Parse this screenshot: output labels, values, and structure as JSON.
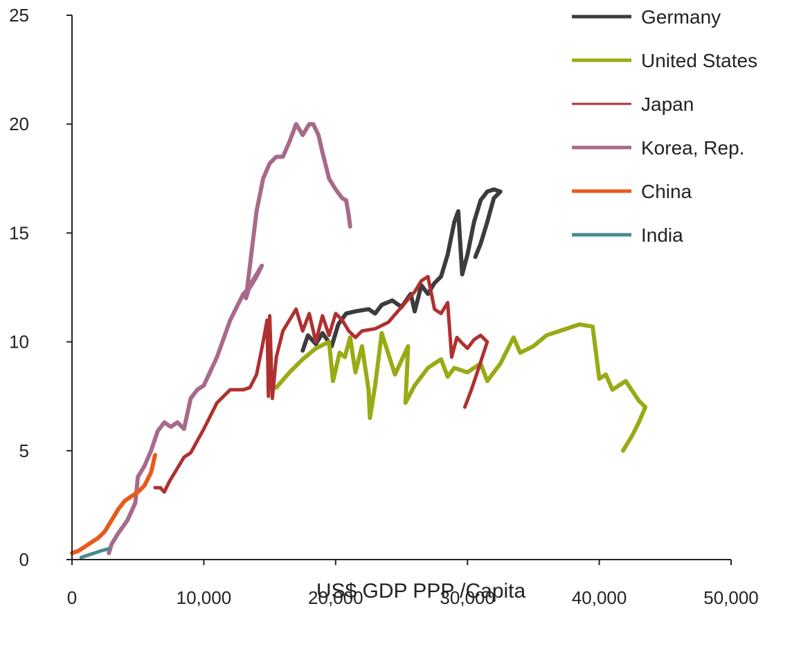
{
  "chart_data": {
    "type": "line",
    "title": "",
    "xlabel": "US$ GDP PPP /Capita",
    "ylabel": "",
    "xlim": [
      0,
      50000
    ],
    "ylim": [
      0,
      25
    ],
    "x_ticks": [
      0,
      10000,
      20000,
      30000,
      40000,
      50000
    ],
    "x_tick_labels": [
      "0",
      "10,000",
      "20,000",
      "30,000",
      "40,000",
      "50,000"
    ],
    "y_ticks": [
      0,
      5,
      10,
      15,
      20,
      25
    ],
    "y_tick_labels": [
      "0",
      "5",
      "10",
      "15",
      "20",
      "25"
    ],
    "grid": false,
    "legend_position": "top-right",
    "series": [
      {
        "name": "Germany",
        "color": "#3c3c3c",
        "points": [
          [
            17500,
            9.6
          ],
          [
            17900,
            10.3
          ],
          [
            18500,
            9.9
          ],
          [
            19000,
            10.4
          ],
          [
            19700,
            9.8
          ],
          [
            20200,
            10.8
          ],
          [
            20800,
            11.3
          ],
          [
            21500,
            11.4
          ],
          [
            22500,
            11.5
          ],
          [
            23000,
            11.3
          ],
          [
            23500,
            11.7
          ],
          [
            24300,
            11.9
          ],
          [
            25000,
            11.6
          ],
          [
            25700,
            12.2
          ],
          [
            26000,
            11.4
          ],
          [
            26500,
            12.6
          ],
          [
            27000,
            12.2
          ],
          [
            27500,
            12.7
          ],
          [
            28000,
            13.0
          ],
          [
            28500,
            14.0
          ],
          [
            29000,
            15.5
          ],
          [
            29300,
            16.0
          ],
          [
            29600,
            13.1
          ],
          [
            30000,
            14.0
          ],
          [
            30500,
            15.5
          ],
          [
            31000,
            16.5
          ],
          [
            31500,
            16.9
          ],
          [
            32000,
            17.0
          ],
          [
            32500,
            16.9
          ],
          [
            32000,
            16.6
          ],
          [
            31500,
            15.5
          ],
          [
            31000,
            14.5
          ],
          [
            30600,
            13.9
          ]
        ]
      },
      {
        "name": "United States",
        "color": "#9aaa14",
        "points": [
          [
            15500,
            7.9
          ],
          [
            16500,
            8.6
          ],
          [
            17500,
            9.2
          ],
          [
            18500,
            9.7
          ],
          [
            19500,
            10.0
          ],
          [
            19800,
            8.2
          ],
          [
            20300,
            9.5
          ],
          [
            20700,
            9.3
          ],
          [
            21100,
            10.2
          ],
          [
            21500,
            8.6
          ],
          [
            22000,
            9.8
          ],
          [
            22500,
            7.8
          ],
          [
            22600,
            6.5
          ],
          [
            23000,
            8.0
          ],
          [
            23500,
            10.4
          ],
          [
            24500,
            8.5
          ],
          [
            25500,
            9.8
          ],
          [
            25300,
            7.2
          ],
          [
            26000,
            8.0
          ],
          [
            27000,
            8.8
          ],
          [
            28000,
            9.2
          ],
          [
            28500,
            8.4
          ],
          [
            29000,
            8.8
          ],
          [
            30000,
            8.6
          ],
          [
            31000,
            9.0
          ],
          [
            31500,
            8.2
          ],
          [
            32500,
            9.0
          ],
          [
            33500,
            10.2
          ],
          [
            34000,
            9.5
          ],
          [
            35000,
            9.8
          ],
          [
            36000,
            10.3
          ],
          [
            37000,
            10.5
          ],
          [
            38500,
            10.8
          ],
          [
            39500,
            10.7
          ],
          [
            40000,
            8.3
          ],
          [
            40500,
            8.5
          ],
          [
            41000,
            7.8
          ],
          [
            42000,
            8.2
          ],
          [
            43000,
            7.3
          ],
          [
            43500,
            7.0
          ],
          [
            43000,
            6.3
          ],
          [
            42500,
            5.7
          ],
          [
            41800,
            5.0
          ]
        ]
      },
      {
        "name": "Japan",
        "color": "#b03030",
        "points": [
          [
            6300,
            3.3
          ],
          [
            6700,
            3.3
          ],
          [
            7000,
            3.1
          ],
          [
            7400,
            3.6
          ],
          [
            8000,
            4.2
          ],
          [
            8500,
            4.7
          ],
          [
            9000,
            4.9
          ],
          [
            10000,
            6.0
          ],
          [
            11000,
            7.2
          ],
          [
            12000,
            7.8
          ],
          [
            13000,
            7.8
          ],
          [
            13500,
            7.9
          ],
          [
            14000,
            8.5
          ],
          [
            14500,
            10.0
          ],
          [
            14800,
            11.0
          ],
          [
            14900,
            7.5
          ],
          [
            15000,
            11.2
          ],
          [
            15200,
            7.4
          ],
          [
            15500,
            9.3
          ],
          [
            16000,
            10.5
          ],
          [
            17000,
            11.5
          ],
          [
            17500,
            10.5
          ],
          [
            18000,
            11.3
          ],
          [
            18500,
            10.0
          ],
          [
            19000,
            11.2
          ],
          [
            19500,
            10.3
          ],
          [
            20000,
            11.3
          ],
          [
            20500,
            11.0
          ],
          [
            21000,
            10.5
          ],
          [
            21500,
            10.2
          ],
          [
            22000,
            10.5
          ],
          [
            23000,
            10.6
          ],
          [
            24000,
            10.9
          ],
          [
            25000,
            11.6
          ],
          [
            26000,
            12.3
          ],
          [
            26500,
            12.8
          ],
          [
            27000,
            13.0
          ],
          [
            27500,
            11.5
          ],
          [
            28000,
            11.3
          ],
          [
            28500,
            11.8
          ],
          [
            28800,
            9.3
          ],
          [
            29200,
            10.2
          ],
          [
            29500,
            10.0
          ],
          [
            30000,
            9.7
          ],
          [
            30500,
            10.1
          ],
          [
            31000,
            10.3
          ],
          [
            31500,
            10.0
          ],
          [
            30800,
            8.7
          ],
          [
            30300,
            7.8
          ],
          [
            29800,
            7.0
          ]
        ]
      },
      {
        "name": "Korea, Rep.",
        "color": "#a86a8a",
        "points": [
          [
            2800,
            0.3
          ],
          [
            3000,
            0.7
          ],
          [
            3500,
            1.2
          ],
          [
            4200,
            1.8
          ],
          [
            4800,
            2.6
          ],
          [
            5000,
            3.8
          ],
          [
            5500,
            4.3
          ],
          [
            6000,
            5.0
          ],
          [
            6500,
            5.9
          ],
          [
            7000,
            6.3
          ],
          [
            7500,
            6.1
          ],
          [
            8000,
            6.3
          ],
          [
            8500,
            6.0
          ],
          [
            9000,
            7.4
          ],
          [
            9500,
            7.8
          ],
          [
            10000,
            8.0
          ],
          [
            11000,
            9.3
          ],
          [
            12000,
            11.0
          ],
          [
            13000,
            12.2
          ],
          [
            13500,
            12.5
          ],
          [
            14000,
            13.0
          ],
          [
            14400,
            13.5
          ],
          [
            13500,
            12.6
          ],
          [
            13200,
            12.0
          ],
          [
            13600,
            14.0
          ],
          [
            14000,
            16.0
          ],
          [
            14500,
            17.5
          ],
          [
            15000,
            18.2
          ],
          [
            15500,
            18.5
          ],
          [
            16000,
            18.5
          ],
          [
            16500,
            19.2
          ],
          [
            17000,
            20.0
          ],
          [
            17500,
            19.5
          ],
          [
            18000,
            20.0
          ],
          [
            18300,
            20.0
          ],
          [
            18700,
            19.5
          ],
          [
            19000,
            18.7
          ],
          [
            19500,
            17.5
          ],
          [
            20000,
            17.0
          ],
          [
            20500,
            16.6
          ],
          [
            20800,
            16.5
          ],
          [
            21000,
            15.8
          ],
          [
            21100,
            15.3
          ]
        ]
      },
      {
        "name": "China",
        "color": "#e85a1a",
        "points": [
          [
            0,
            0.3
          ],
          [
            500,
            0.4
          ],
          [
            1000,
            0.6
          ],
          [
            1500,
            0.8
          ],
          [
            2000,
            1.0
          ],
          [
            2500,
            1.3
          ],
          [
            3000,
            1.8
          ],
          [
            3500,
            2.3
          ],
          [
            4000,
            2.7
          ],
          [
            4500,
            2.9
          ],
          [
            5000,
            3.1
          ],
          [
            5500,
            3.4
          ],
          [
            6000,
            4.0
          ],
          [
            6300,
            4.8
          ]
        ]
      },
      {
        "name": "India",
        "color": "#4a8a8e",
        "points": [
          [
            700,
            0.1
          ],
          [
            1200,
            0.2
          ],
          [
            1700,
            0.3
          ],
          [
            2200,
            0.4
          ],
          [
            2800,
            0.5
          ]
        ]
      }
    ]
  }
}
